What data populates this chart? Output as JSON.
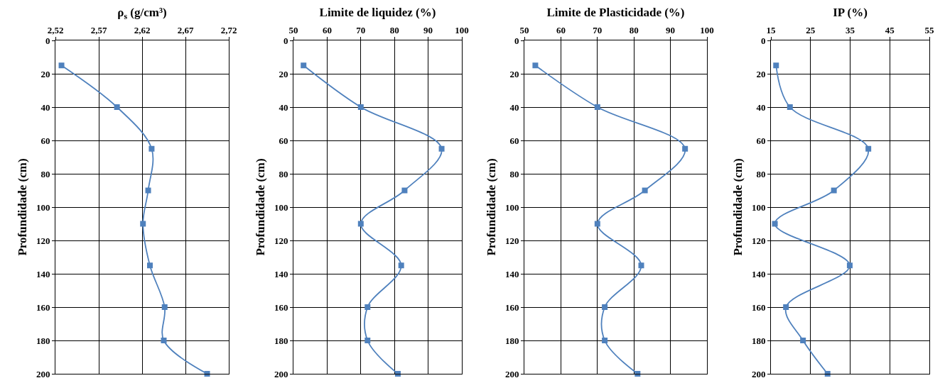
{
  "chart_data": [
    {
      "type": "line",
      "xlabel": "ρ$_{s}$ (g/cm³)",
      "ylabel": "Profundidade (cm)",
      "marker": "square",
      "grid": true,
      "xlim": [
        2.52,
        2.72
      ],
      "xticks": [
        {
          "value": 2.52,
          "label": "2,52"
        },
        {
          "value": 2.57,
          "label": "2,57"
        },
        {
          "value": 2.62,
          "label": "2,62"
        },
        {
          "value": 2.67,
          "label": "2,67"
        },
        {
          "value": 2.72,
          "label": "2,72"
        }
      ],
      "ylim": [
        200,
        0
      ],
      "yticks": [
        0,
        20,
        40,
        60,
        80,
        100,
        120,
        140,
        160,
        180,
        200
      ],
      "series": [
        {
          "color": "#4f81bd",
          "x": [
            2.527,
            2.591,
            2.631,
            2.627,
            2.621,
            2.629,
            2.646,
            2.645,
            2.695
          ],
          "values": [
            15,
            40,
            65,
            90,
            110,
            135,
            160,
            180,
            200
          ]
        }
      ]
    },
    {
      "type": "line",
      "xlabel": "Limite de liquidez (%)",
      "ylabel": "Profundidade (cm)",
      "marker": "square",
      "grid": true,
      "xlim": [
        50,
        100
      ],
      "xticks": [
        50,
        60,
        70,
        80,
        90,
        100
      ],
      "ylim": [
        200,
        0
      ],
      "yticks": [
        0,
        20,
        40,
        60,
        80,
        100,
        120,
        140,
        160,
        180,
        200
      ],
      "series": [
        {
          "color": "#4f81bd",
          "x": [
            53,
            70,
            94,
            83,
            70,
            82,
            72,
            72,
            81
          ],
          "values": [
            15,
            40,
            65,
            90,
            110,
            135,
            160,
            180,
            200
          ]
        }
      ]
    },
    {
      "type": "line",
      "xlabel": "Limite de Plasticidade (%)",
      "ylabel": "Profundidade (cm)",
      "marker": "square",
      "grid": true,
      "xlim": [
        50,
        100
      ],
      "xticks": [
        50,
        60,
        70,
        80,
        90,
        100
      ],
      "ylim": [
        200,
        0
      ],
      "yticks": [
        0,
        20,
        40,
        60,
        80,
        100,
        120,
        140,
        160,
        180,
        200
      ],
      "series": [
        {
          "color": "#4f81bd",
          "x": [
            53,
            70,
            94,
            83,
            70,
            82,
            72,
            72,
            81
          ],
          "values": [
            15,
            40,
            65,
            90,
            110,
            135,
            160,
            180,
            200
          ]
        }
      ]
    },
    {
      "type": "line",
      "xlabel": "IP (%)",
      "ylabel": "Profundidade (cm)",
      "marker": "square",
      "grid": true,
      "xlim": [
        15,
        55
      ],
      "xticks": [
        15,
        25,
        35,
        45,
        55
      ],
      "ylim": [
        200,
        0
      ],
      "yticks": [
        0,
        20,
        40,
        60,
        80,
        100,
        120,
        140,
        160,
        180,
        200
      ],
      "series": [
        {
          "color": "#4f81bd",
          "x": [
            16.3,
            19.8,
            39.6,
            30.9,
            16.0,
            34.9,
            18.8,
            23.1,
            29.3
          ],
          "values": [
            15,
            40,
            65,
            90,
            110,
            135,
            160,
            180,
            200
          ]
        }
      ]
    }
  ]
}
